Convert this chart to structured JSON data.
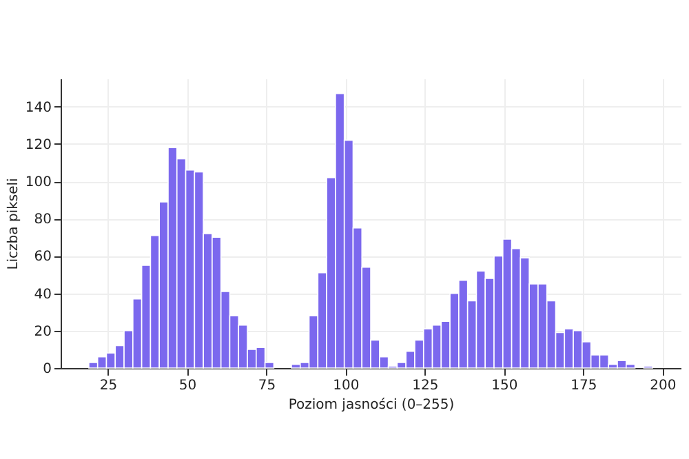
{
  "chart_data": {
    "type": "histogram",
    "xlabel": "Poziom jasności (0–255)",
    "ylabel": "Liczba pikseli",
    "bins": [
      19.0,
      21.78,
      24.56,
      27.34,
      30.12,
      32.9,
      35.68,
      38.46,
      41.24,
      44.02,
      46.8,
      49.58,
      52.36,
      55.14,
      57.92,
      60.7,
      63.48,
      66.26,
      69.04,
      71.82,
      74.6,
      77.38,
      80.16,
      82.94,
      85.72,
      88.5,
      91.28,
      94.06,
      96.84,
      99.62,
      102.4,
      105.18,
      107.96,
      110.74,
      113.52,
      116.3,
      119.08,
      121.86,
      124.64,
      127.42,
      130.2,
      132.98,
      135.76,
      138.54,
      141.32,
      144.1,
      146.88,
      149.66,
      152.44,
      155.22,
      158.0,
      160.78,
      163.56,
      166.34,
      169.12,
      171.9,
      174.68,
      177.46,
      180.24,
      183.02,
      185.8,
      188.58,
      191.36,
      194.14,
      196.92
    ],
    "values": [
      3,
      6,
      8,
      12,
      20,
      37,
      55,
      71,
      89,
      118,
      112,
      106,
      105,
      72,
      70,
      41,
      28,
      23,
      10,
      11,
      3,
      0,
      0,
      2,
      3,
      28,
      51,
      102,
      147,
      122,
      75,
      54,
      15,
      6,
      1,
      3,
      9,
      15,
      21,
      23,
      25,
      40,
      47,
      36,
      52,
      48,
      60,
      69,
      64,
      59,
      45,
      45,
      36,
      19,
      21,
      20,
      14,
      7,
      7,
      2,
      4,
      2,
      0,
      1
    ],
    "color": "#7b68ee",
    "xlim": [
      10.1,
      205.8
    ],
    "xticks": [
      25,
      50,
      75,
      100,
      125,
      150,
      175,
      200
    ],
    "ylim": [
      0,
      155
    ],
    "yticks": [
      0,
      20,
      40,
      60,
      80,
      100,
      120,
      140
    ],
    "grid": true
  }
}
